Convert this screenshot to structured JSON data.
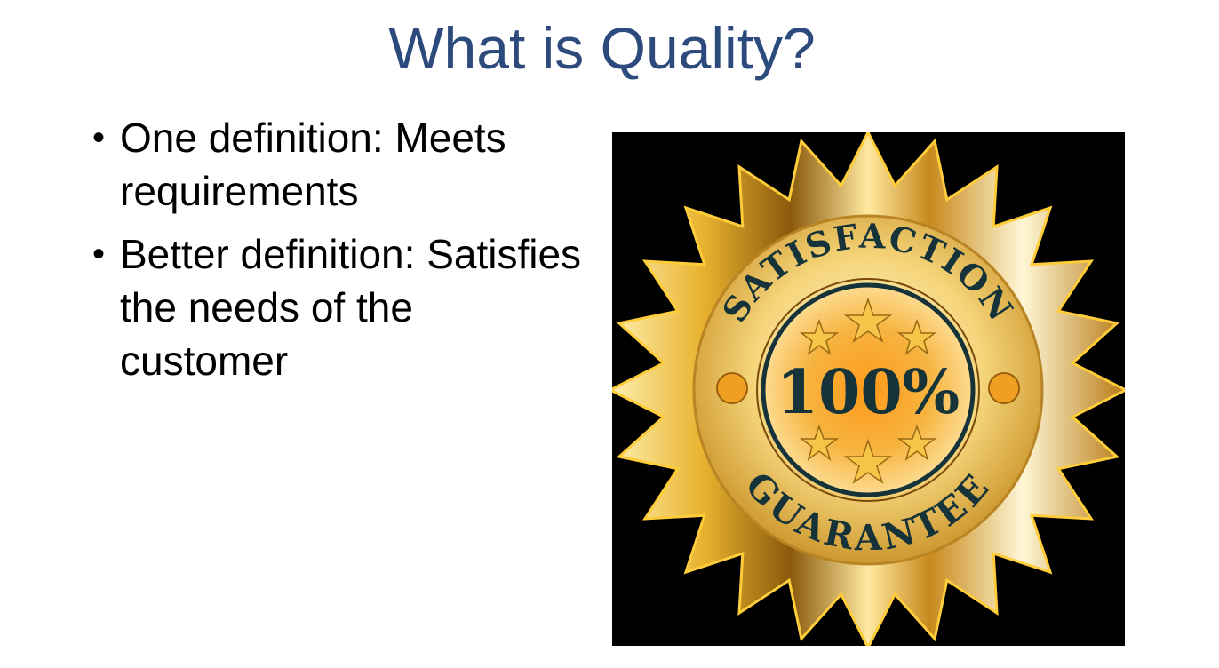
{
  "slide": {
    "title": "What is Quality?",
    "bullets": [
      {
        "marker": "•",
        "text": "One definition: Meets requirements"
      },
      {
        "marker": "•",
        "text": "Better definition: Satisfies the needs of the customer"
      }
    ]
  },
  "image": {
    "icon": "satisfaction-guarantee-seal-icon",
    "top_arc_text": "SATISFACTION",
    "center_text": "100%",
    "bottom_arc_text": "GUARANTEE",
    "colors": {
      "background": "#000000",
      "gold_light": "#fff1b0",
      "gold_mid": "#e8b22e",
      "gold_dark": "#8a5a0c",
      "text": "#16333a"
    }
  },
  "colors": {
    "title": "#2d4a7c",
    "body_text": "#000000",
    "background": "#ffffff"
  }
}
